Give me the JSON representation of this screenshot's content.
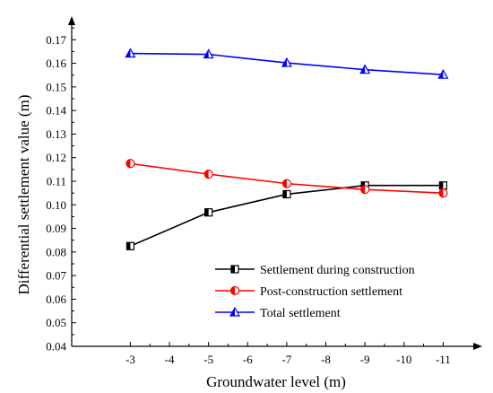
{
  "chart_data": {
    "type": "line",
    "title": "",
    "xlabel": "Groundwater level (m)",
    "ylabel": "Differential settlement value (m)",
    "x_ticks": [
      "-3",
      "-4",
      "-5",
      "-6",
      "-7",
      "-8",
      "-9",
      "-10",
      "-11"
    ],
    "x": [
      -3,
      -5,
      -7,
      -9,
      -11
    ],
    "xlim": [
      -1.5,
      -12
    ],
    "ylim": [
      0.04,
      0.18
    ],
    "y_ticks": [
      "0.04",
      "0.05",
      "0.06",
      "0.07",
      "0.08",
      "0.09",
      "0.10",
      "0.11",
      "0.12",
      "0.13",
      "0.14",
      "0.15",
      "0.16",
      "0.17"
    ],
    "grid": false,
    "legend_position": "bottom-right",
    "series": [
      {
        "name": "Settlement during construction",
        "color": "#000000",
        "marker": "square-half",
        "values": [
          0.0825,
          0.0968,
          0.1045,
          0.1082,
          0.1082
        ]
      },
      {
        "name": "Post-construction settlement",
        "color": "#ff0000",
        "marker": "circle-half",
        "values": [
          0.1175,
          0.113,
          0.109,
          0.1065,
          0.105
        ]
      },
      {
        "name": "Total settlement",
        "color": "#0000ff",
        "marker": "triangle-half",
        "values": [
          0.1642,
          0.1638,
          0.1602,
          0.1573,
          0.1552
        ]
      }
    ]
  }
}
